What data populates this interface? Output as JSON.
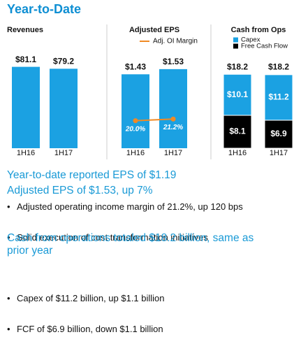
{
  "header": {
    "title": "Year-to-Date"
  },
  "chart_data": [
    {
      "type": "bar",
      "title": "Revenues",
      "categories": [
        "1H16",
        "1H17"
      ],
      "values": [
        81.1,
        79.2
      ],
      "value_labels": [
        "$81.1",
        "$79.2"
      ],
      "color": "#1ba1e2",
      "ylim": [
        0,
        85
      ]
    },
    {
      "type": "bar_line",
      "title": "Adjusted EPS",
      "categories": [
        "1H16",
        "1H17"
      ],
      "values": [
        1.43,
        1.53
      ],
      "value_labels": [
        "$1.43",
        "$1.53"
      ],
      "color": "#1ba1e2",
      "ylim": [
        0,
        1.65
      ],
      "line": {
        "name": "Adj. OI Margin",
        "color": "#f08a24",
        "values": [
          20.0,
          21.2
        ],
        "value_labels": [
          "20.0%",
          "21.2%"
        ]
      },
      "y2lim": [
        0,
        62
      ]
    },
    {
      "type": "stacked_bar",
      "title": "Cash from Ops",
      "categories": [
        "1H16",
        "1H17"
      ],
      "ylim": [
        0,
        21
      ],
      "series": [
        {
          "name": "Capex",
          "color": "#1ba1e2",
          "values": [
            10.1,
            11.2
          ],
          "value_labels": [
            "$10.1",
            "$11.2"
          ]
        },
        {
          "name": "Free Cash Flow",
          "color": "#000000",
          "values": [
            8.1,
            6.9
          ],
          "value_labels": [
            "$8.1",
            "$6.9"
          ]
        }
      ],
      "totals": [
        18.2,
        18.2
      ],
      "total_labels": [
        "$18.2",
        "$18.2"
      ]
    }
  ],
  "sections": [
    {
      "heading": "Year-to-date reported EPS of $1.19"
    },
    {
      "heading": "Adjusted EPS of $1.53, up 7%",
      "bullets": [
        "Adjusted operating income margin of 21.2%, up 120 bps",
        "Solid execution of cost transformation initiatives"
      ]
    },
    {
      "heading": "Cash from operations totaled $18.2 billion, same as prior year",
      "bullets": [
        "Capex of $11.2 billion, up $1.1 billion",
        "FCF of $6.9 billion, down $1.1 billion"
      ]
    }
  ]
}
